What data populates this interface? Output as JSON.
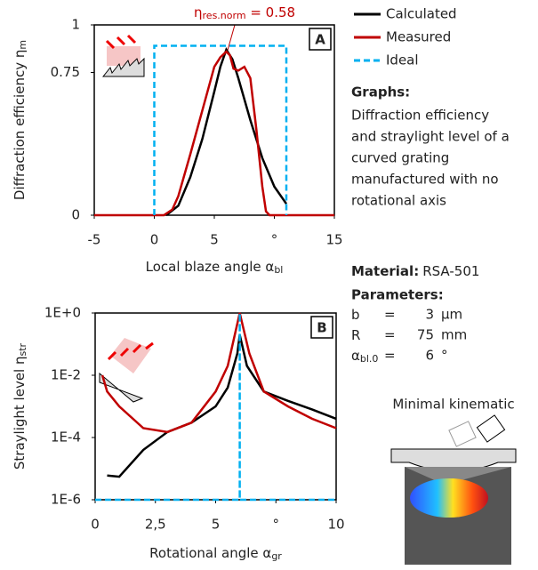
{
  "chart_data": [
    {
      "type": "line",
      "panel_label": "A",
      "xlabel": "Local blaze angle α",
      "xlabel_sub": "bl",
      "ylabel": "Diffraction efficiency η",
      "ylabel_sub": "m",
      "xlim": [
        -5,
        15
      ],
      "ylim": [
        0,
        1
      ],
      "xticks": [
        -5,
        0,
        5,
        {
          "value": 10,
          "label": "°"
        },
        15
      ],
      "yticks": [
        0,
        0.75,
        1
      ],
      "annotation": {
        "symbol": "η",
        "sub": "res.norm",
        "text": " = 0.58"
      },
      "series": [
        {
          "name": "Calculated",
          "color": "#000000",
          "x": [
            1,
            2,
            3,
            4,
            5,
            5.5,
            6,
            6.5,
            7,
            8,
            9,
            10,
            11
          ],
          "values": [
            0,
            0.05,
            0.2,
            0.4,
            0.65,
            0.78,
            0.87,
            0.82,
            0.72,
            0.5,
            0.3,
            0.15,
            0.06
          ]
        },
        {
          "name": "Measured",
          "color": "#c00000",
          "x": [
            -5,
            0.8,
            1.5,
            2,
            3,
            4,
            5,
            5.5,
            6,
            6.3,
            6.6,
            7,
            7.5,
            8,
            8.5,
            9,
            9.3,
            9.6,
            15
          ],
          "values": [
            0,
            0,
            0.03,
            0.1,
            0.32,
            0.55,
            0.78,
            0.83,
            0.86,
            0.84,
            0.77,
            0.76,
            0.78,
            0.72,
            0.45,
            0.15,
            0.02,
            0,
            0
          ]
        },
        {
          "name": "Ideal",
          "color": "#00b0f0",
          "dashed": true,
          "x": [
            0,
            0,
            11,
            11
          ],
          "values": [
            0,
            0.89,
            0.89,
            0
          ]
        }
      ]
    },
    {
      "type": "line",
      "panel_label": "B",
      "xlabel": "Rotational angle α",
      "xlabel_sub": "gr",
      "ylabel": "Straylight level η",
      "ylabel_sub": "str",
      "log_y": true,
      "xlim": [
        0,
        10
      ],
      "ylim": [
        1e-06,
        1
      ],
      "xticks": [
        0,
        {
          "value": 2.5,
          "label": "2,5"
        },
        5,
        {
          "value": 7.5,
          "label": "°"
        },
        10
      ],
      "yticks": [
        {
          "value": 1,
          "label": "1E+0"
        },
        {
          "value": 0.01,
          "label": "1E-2"
        },
        {
          "value": 0.0001,
          "label": "1E-4"
        },
        {
          "value": 1e-06,
          "label": "1E-6"
        }
      ],
      "series": [
        {
          "color": "#000000",
          "x": [
            0.5,
            1,
            2,
            3,
            4,
            5,
            5.5,
            5.9,
            6,
            6.3,
            7,
            8,
            9,
            10
          ],
          "values": [
            6e-06,
            5.5e-06,
            4e-05,
            0.00015,
            0.0003,
            0.001,
            0.004,
            0.05,
            0.2,
            0.02,
            0.003,
            0.0015,
            0.0008,
            0.0004
          ]
        },
        {
          "color": "#c00000",
          "x": [
            0.3,
            0.5,
            1,
            2,
            3,
            4,
            5,
            5.5,
            6,
            6.4,
            7,
            8,
            9,
            10
          ],
          "values": [
            0.01,
            0.003,
            0.001,
            0.0002,
            0.00015,
            0.0003,
            0.003,
            0.02,
            1,
            0.05,
            0.003,
            0.001,
            0.0004,
            0.0002
          ]
        },
        {
          "color": "#00b0f0",
          "dashed": true,
          "x": [
            0,
            6,
            6,
            6,
            10
          ],
          "values": [
            1e-06,
            1e-06,
            1,
            1e-06,
            1e-06
          ]
        }
      ]
    }
  ],
  "side": {
    "graphs_heading": "Graphs:",
    "graphs_lines": [
      "Diffraction efficiency",
      "and straylight level of a",
      "curved grating",
      "manufactured with no",
      "rotational axis"
    ],
    "material_label": "Material:",
    "material": "RSA-501",
    "parameters_heading": "Parameters:",
    "parameters": [
      [
        "b",
        "=",
        3,
        "µm"
      ],
      [
        "R",
        "=",
        75,
        "mm"
      ],
      [
        "α",
        "bl.0",
        "=",
        6,
        "°"
      ]
    ],
    "image_caption": "Minimal kinematic"
  }
}
